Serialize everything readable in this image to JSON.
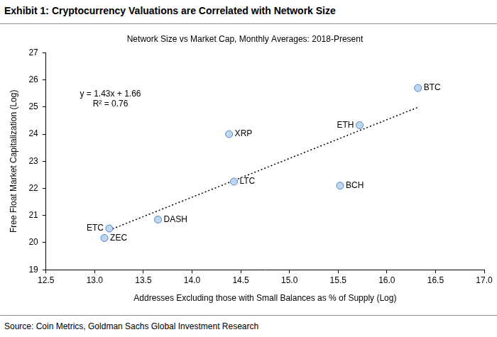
{
  "page_title": "Exhibit 1: Cryptocurrency Valuations are Correlated with Network Size",
  "source": "Source: Coin Metrics, Goldman Sachs Global Investment Research",
  "chart_data": {
    "type": "scatter",
    "title": "Network Size vs Market Cap, Monthly Averages: 2018-Present",
    "x_label": "Addresses Excluding those with Small Balances as % of Supply (Log)",
    "y_label": "Free Float Market Capitalization (Log)",
    "x": [
      16.32,
      15.72,
      14.38,
      14.43,
      15.52,
      13.65,
      13.15,
      13.1
    ],
    "values": [
      25.7,
      24.33,
      24.0,
      22.25,
      22.1,
      20.85,
      20.52,
      20.17
    ],
    "point_labels": [
      "BTC",
      "ETH",
      "XRP",
      "LTC",
      "BCH",
      "DASH",
      "ETC",
      "ZEC"
    ],
    "color": "#bdd7ee",
    "marker": "circle",
    "trendline": {
      "x": [
        13.15,
        16.32
      ],
      "values": [
        20.46,
        24.99
      ],
      "color": "#000000",
      "line_style": "dotted"
    },
    "annotations": [
      "y = 1.43x + 1.66",
      "R² = 0.76"
    ],
    "xlim": [
      12.5,
      17
    ],
    "xticks": [
      12.5,
      {
        "value": 13,
        "label": "13.0"
      },
      13.5,
      {
        "value": 14,
        "label": "14.0"
      },
      14.5,
      {
        "value": 15,
        "label": "15.0"
      },
      15.5,
      {
        "value": 16,
        "label": "16.0"
      },
      16.5,
      {
        "value": 17,
        "label": "17.0"
      }
    ],
    "ylim": [
      19,
      27
    ],
    "yticks": [
      19,
      20,
      21,
      22,
      23,
      24,
      25,
      26,
      27
    ],
    "grid": false
  }
}
